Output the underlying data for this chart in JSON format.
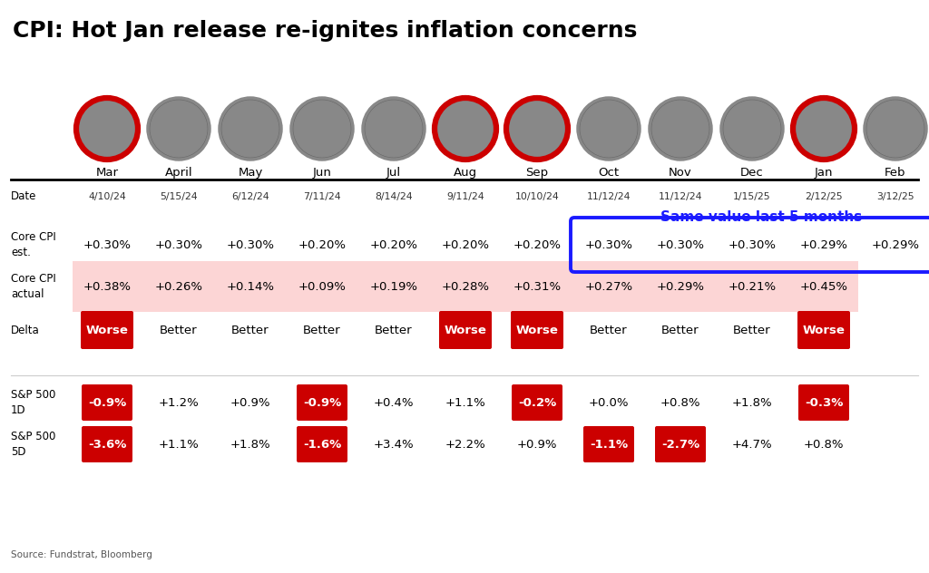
{
  "title": "CPI: Hot Jan release re-ignites inflation concerns",
  "months": [
    "Mar",
    "April",
    "May",
    "Jun",
    "Jul",
    "Aug",
    "Sep",
    "Oct",
    "Nov",
    "Dec",
    "Jan",
    "Feb"
  ],
  "dates": [
    "4/10/24",
    "5/15/24",
    "6/12/24",
    "7/11/24",
    "8/14/24",
    "9/11/24",
    "10/10/24",
    "11/12/24",
    "11/12/24",
    "1/15/25",
    "2/12/25",
    "3/12/25"
  ],
  "core_cpi_est": [
    "+0.30%",
    "+0.30%",
    "+0.30%",
    "+0.20%",
    "+0.20%",
    "+0.20%",
    "+0.20%",
    "+0.30%",
    "+0.30%",
    "+0.30%",
    "+0.29%",
    "+0.29%"
  ],
  "core_cpi_actual": [
    "+0.38%",
    "+0.26%",
    "+0.14%",
    "+0.09%",
    "+0.19%",
    "+0.28%",
    "+0.31%",
    "+0.27%",
    "+0.29%",
    "+0.21%",
    "+0.45%",
    ""
  ],
  "delta": [
    "Worse",
    "Better",
    "Better",
    "Better",
    "Better",
    "Worse",
    "Worse",
    "Better",
    "Better",
    "Better",
    "Worse",
    ""
  ],
  "delta_worse": [
    true,
    false,
    false,
    false,
    false,
    true,
    true,
    false,
    false,
    false,
    true,
    false
  ],
  "sp500_1d": [
    "-0.9%",
    "+1.2%",
    "+0.9%",
    "-0.9%",
    "+0.4%",
    "+1.1%",
    "-0.2%",
    "+0.0%",
    "+0.8%",
    "+1.8%",
    "-0.3%",
    ""
  ],
  "sp500_1d_red": [
    true,
    false,
    false,
    true,
    false,
    false,
    true,
    false,
    false,
    false,
    true,
    false
  ],
  "sp500_5d": [
    "-3.6%",
    "+1.1%",
    "+1.8%",
    "-1.6%",
    "+3.4%",
    "+2.2%",
    "+0.9%",
    "-1.1%",
    "-2.7%",
    "+4.7%",
    "+0.8%",
    ""
  ],
  "sp500_5d_red": [
    true,
    false,
    false,
    true,
    false,
    false,
    false,
    true,
    true,
    false,
    false,
    false
  ],
  "hot_months": [
    0,
    5,
    6,
    10
  ],
  "same_value_annotation": "Same value last 5 months",
  "source_text": "Source: Fundstrat, Bloomberg",
  "bg_color": "#ffffff",
  "title_color": "#000000",
  "red_color": "#cc0000",
  "blue_color": "#1a1aff",
  "pink_row_color": "#fcd5d5",
  "avatar_bg_dark": "#555555",
  "avatar_bg_light": "#888888"
}
